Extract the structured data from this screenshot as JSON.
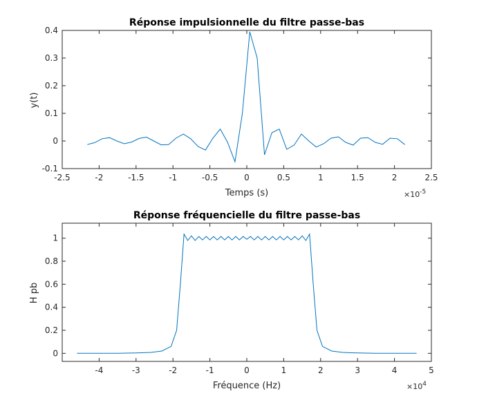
{
  "chart_data": [
    {
      "type": "line",
      "title": "Réponse impulsionnelle du filtre passe-bas",
      "xlabel": "Temps (s)",
      "ylabel": "y(t)",
      "x_multiplier_label": "×10",
      "x_multiplier_exp": "-5",
      "xlim": [
        -2.5,
        2.5
      ],
      "ylim": [
        -0.1,
        0.4
      ],
      "xticks": [
        -2.5,
        -2,
        -1.5,
        -1,
        -0.5,
        0,
        0.5,
        1,
        1.5,
        2,
        2.5
      ],
      "xtick_labels": [
        "-2.5",
        "-2",
        "-1.5",
        "-1",
        "-0.5",
        "0",
        "0.5",
        "1",
        "1.5",
        "2",
        "2.5"
      ],
      "yticks": [
        -0.1,
        0,
        0.1,
        0.2,
        0.3,
        0.4
      ],
      "ytick_labels": [
        "-0.1",
        "0",
        "0.1",
        "0.2",
        "0.3",
        "0.4"
      ],
      "grid": false,
      "color": "#0072bd",
      "x": [
        -2.16,
        -2.06,
        -1.96,
        -1.86,
        -1.76,
        -1.66,
        -1.56,
        -1.46,
        -1.36,
        -1.26,
        -1.16,
        -1.06,
        -0.96,
        -0.86,
        -0.76,
        -0.66,
        -0.56,
        -0.46,
        -0.36,
        -0.26,
        -0.16,
        -0.06,
        0.04,
        0.14,
        0.24,
        0.34,
        0.44,
        0.54,
        0.64,
        0.74,
        0.84,
        0.94,
        1.04,
        1.14,
        1.24,
        1.34,
        1.44,
        1.54,
        1.64,
        1.74,
        1.84,
        1.94,
        2.04,
        2.14
      ],
      "y": [
        -0.013,
        -0.006,
        0.008,
        0.012,
        0.0,
        -0.01,
        -0.004,
        0.009,
        0.014,
        0.0,
        -0.014,
        -0.013,
        0.01,
        0.025,
        0.008,
        -0.02,
        -0.033,
        0.01,
        0.043,
        -0.005,
        -0.075,
        0.1,
        0.395,
        0.3,
        -0.05,
        0.03,
        0.043,
        -0.03,
        -0.015,
        0.025,
        0.0,
        -0.022,
        -0.01,
        0.01,
        0.015,
        -0.005,
        -0.015,
        0.01,
        0.012,
        -0.005,
        -0.012,
        0.01,
        0.008,
        -0.013
      ]
    },
    {
      "type": "line",
      "title": "Réponse fréquencielle du filtre passe-bas",
      "xlabel": "Fréquence (Hz)",
      "ylabel": "H pb",
      "x_multiplier_label": "×10",
      "x_multiplier_exp": "4",
      "xlim": [
        -5,
        5
      ],
      "ylim": [
        -0.07,
        1.13
      ],
      "xticks": [
        -4,
        -3,
        -2,
        -1,
        0,
        1,
        2,
        3,
        4,
        5
      ],
      "xtick_labels": [
        "-4",
        "-3",
        "-2",
        "-1",
        "0",
        "1",
        "2",
        "3",
        "4",
        "5"
      ],
      "yticks": [
        0,
        0.2,
        0.4,
        0.6,
        0.8,
        1
      ],
      "ytick_labels": [
        "0",
        "0.2",
        "0.4",
        "0.6",
        "0.8",
        "1"
      ],
      "grid": false,
      "color": "#0072bd",
      "x": [
        -4.6,
        -4.0,
        -3.5,
        -3.0,
        -2.6,
        -2.3,
        -2.05,
        -1.9,
        -1.8,
        -1.7,
        -1.6,
        -1.5,
        -1.4,
        -1.3,
        -1.2,
        -1.1,
        -1.0,
        -0.9,
        -0.8,
        -0.7,
        -0.6,
        -0.5,
        -0.4,
        -0.3,
        -0.2,
        -0.1,
        0.0,
        0.1,
        0.2,
        0.3,
        0.4,
        0.5,
        0.6,
        0.7,
        0.8,
        0.9,
        1.0,
        1.1,
        1.2,
        1.3,
        1.4,
        1.5,
        1.6,
        1.7,
        1.8,
        1.9,
        2.05,
        2.3,
        2.6,
        3.0,
        3.5,
        4.0,
        4.6
      ],
      "y": [
        0.0,
        0.0,
        0.0,
        0.003,
        0.008,
        0.02,
        0.06,
        0.2,
        0.6,
        1.035,
        0.98,
        1.02,
        0.98,
        1.015,
        0.985,
        1.015,
        0.985,
        1.015,
        0.985,
        1.015,
        0.985,
        1.015,
        0.985,
        1.015,
        0.985,
        1.015,
        0.99,
        1.015,
        0.985,
        1.015,
        0.985,
        1.015,
        0.985,
        1.015,
        0.985,
        1.015,
        0.985,
        1.015,
        0.985,
        1.015,
        0.985,
        1.02,
        0.98,
        1.035,
        0.6,
        0.2,
        0.06,
        0.02,
        0.008,
        0.003,
        0.0,
        0.0,
        0.0
      ]
    }
  ]
}
